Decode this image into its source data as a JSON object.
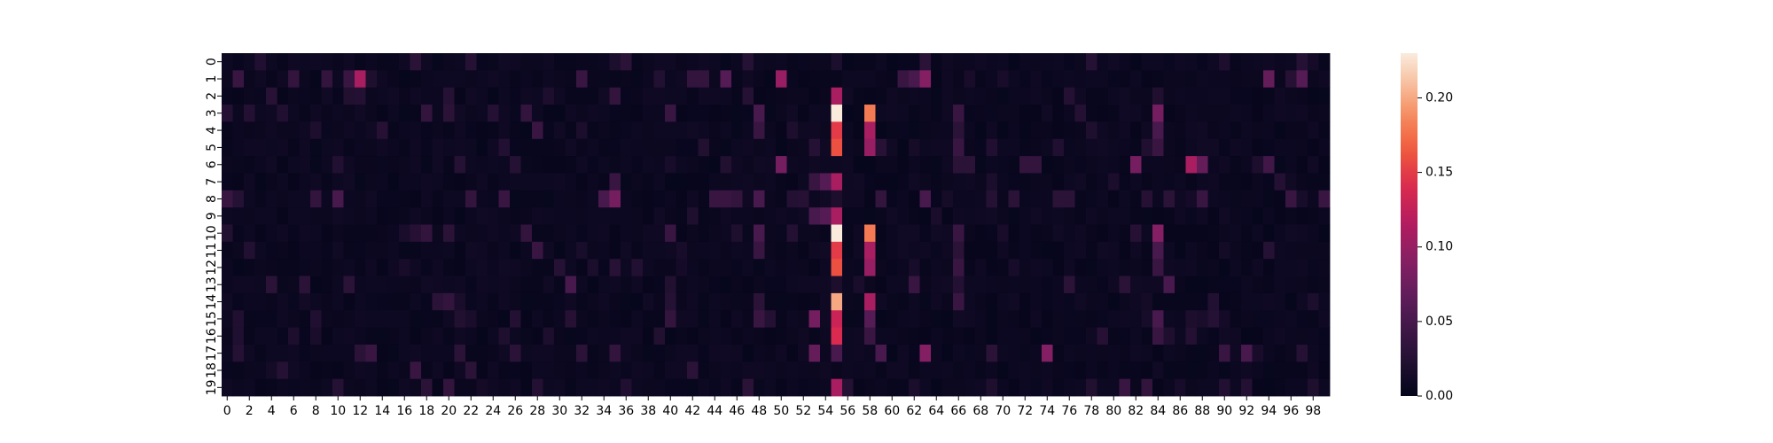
{
  "chart_data": {
    "type": "heatmap",
    "title": "",
    "xlabel": "",
    "ylabel": "",
    "rows": 20,
    "cols": 100,
    "x_tick_labels": [
      "0",
      "2",
      "4",
      "6",
      "8",
      "10",
      "12",
      "14",
      "16",
      "18",
      "20",
      "22",
      "24",
      "26",
      "28",
      "30",
      "32",
      "34",
      "36",
      "38",
      "40",
      "42",
      "44",
      "46",
      "48",
      "50",
      "52",
      "54",
      "56",
      "58",
      "60",
      "62",
      "64",
      "66",
      "68",
      "70",
      "72",
      "74",
      "76",
      "78",
      "80",
      "82",
      "84",
      "86",
      "88",
      "90",
      "92",
      "94",
      "96",
      "98"
    ],
    "y_tick_labels": [
      "0",
      "1",
      "2",
      "3",
      "4",
      "5",
      "6",
      "7",
      "8",
      "9",
      "10",
      "11",
      "12",
      "13",
      "14",
      "15",
      "16",
      "17",
      "18",
      "19"
    ],
    "colorbar": {
      "min": 0.0,
      "max": 0.23,
      "tick_labels": [
        "0.00",
        "0.05",
        "0.10",
        "0.15",
        "0.20"
      ],
      "tick_values": [
        0.0,
        0.05,
        0.1,
        0.15,
        0.2
      ],
      "colormap": "rocket"
    },
    "background_level": 0.008,
    "hot_cells": [
      {
        "row": 1,
        "col": 12,
        "v": 0.11
      },
      {
        "row": 1,
        "col": 50,
        "v": 0.1
      },
      {
        "row": 1,
        "col": 63,
        "v": 0.09
      },
      {
        "row": 1,
        "col": 1,
        "v": 0.04
      },
      {
        "row": 1,
        "col": 6,
        "v": 0.035
      },
      {
        "row": 1,
        "col": 9,
        "v": 0.035
      },
      {
        "row": 1,
        "col": 11,
        "v": 0.04
      },
      {
        "row": 1,
        "col": 45,
        "v": 0.06
      },
      {
        "row": 1,
        "col": 94,
        "v": 0.07
      },
      {
        "row": 1,
        "col": 97,
        "v": 0.06
      },
      {
        "row": 1,
        "col": 32,
        "v": 0.04
      },
      {
        "row": 1,
        "col": 61,
        "v": 0.04
      },
      {
        "row": 1,
        "col": 62,
        "v": 0.05
      },
      {
        "row": 1,
        "col": 42,
        "v": 0.035
      },
      {
        "row": 1,
        "col": 43,
        "v": 0.035
      },
      {
        "row": 2,
        "col": 55,
        "v": 0.11
      },
      {
        "row": 3,
        "col": 55,
        "v": 0.23
      },
      {
        "row": 4,
        "col": 55,
        "v": 0.15
      },
      {
        "row": 5,
        "col": 55,
        "v": 0.16
      },
      {
        "row": 7,
        "col": 55,
        "v": 0.11
      },
      {
        "row": 9,
        "col": 55,
        "v": 0.11
      },
      {
        "row": 10,
        "col": 55,
        "v": 0.23
      },
      {
        "row": 11,
        "col": 55,
        "v": 0.15
      },
      {
        "row": 12,
        "col": 55,
        "v": 0.16
      },
      {
        "row": 14,
        "col": 55,
        "v": 0.2
      },
      {
        "row": 15,
        "col": 55,
        "v": 0.13
      },
      {
        "row": 16,
        "col": 55,
        "v": 0.14
      },
      {
        "row": 17,
        "col": 55,
        "v": 0.05
      },
      {
        "row": 19,
        "col": 55,
        "v": 0.11
      },
      {
        "row": 8,
        "col": 55,
        "v": 0.02
      },
      {
        "row": 13,
        "col": 55,
        "v": 0.02
      },
      {
        "row": 3,
        "col": 58,
        "v": 0.18
      },
      {
        "row": 4,
        "col": 58,
        "v": 0.11
      },
      {
        "row": 5,
        "col": 58,
        "v": 0.1
      },
      {
        "row": 10,
        "col": 58,
        "v": 0.18
      },
      {
        "row": 11,
        "col": 58,
        "v": 0.11
      },
      {
        "row": 12,
        "col": 58,
        "v": 0.1
      },
      {
        "row": 14,
        "col": 58,
        "v": 0.11
      },
      {
        "row": 15,
        "col": 58,
        "v": 0.06
      },
      {
        "row": 16,
        "col": 58,
        "v": 0.04
      },
      {
        "row": 3,
        "col": 84,
        "v": 0.08
      },
      {
        "row": 4,
        "col": 84,
        "v": 0.05
      },
      {
        "row": 5,
        "col": 84,
        "v": 0.04
      },
      {
        "row": 10,
        "col": 84,
        "v": 0.09
      },
      {
        "row": 11,
        "col": 84,
        "v": 0.05
      },
      {
        "row": 12,
        "col": 84,
        "v": 0.04
      },
      {
        "row": 15,
        "col": 84,
        "v": 0.05
      },
      {
        "row": 16,
        "col": 84,
        "v": 0.04
      },
      {
        "row": 6,
        "col": 50,
        "v": 0.08
      },
      {
        "row": 6,
        "col": 82,
        "v": 0.08
      },
      {
        "row": 6,
        "col": 87,
        "v": 0.11
      },
      {
        "row": 6,
        "col": 88,
        "v": 0.07
      },
      {
        "row": 6,
        "col": 66,
        "v": 0.03
      },
      {
        "row": 6,
        "col": 67,
        "v": 0.03
      },
      {
        "row": 6,
        "col": 72,
        "v": 0.035
      },
      {
        "row": 6,
        "col": 73,
        "v": 0.035
      },
      {
        "row": 6,
        "col": 94,
        "v": 0.045
      },
      {
        "row": 6,
        "col": 21,
        "v": 0.025
      },
      {
        "row": 7,
        "col": 53,
        "v": 0.04
      },
      {
        "row": 7,
        "col": 54,
        "v": 0.06
      },
      {
        "row": 9,
        "col": 53,
        "v": 0.05
      },
      {
        "row": 9,
        "col": 54,
        "v": 0.06
      },
      {
        "row": 7,
        "col": 35,
        "v": 0.04
      },
      {
        "row": 8,
        "col": 35,
        "v": 0.08
      },
      {
        "row": 8,
        "col": 34,
        "v": 0.05
      },
      {
        "row": 8,
        "col": 0,
        "v": 0.04
      },
      {
        "row": 8,
        "col": 10,
        "v": 0.05
      },
      {
        "row": 8,
        "col": 8,
        "v": 0.035
      },
      {
        "row": 8,
        "col": 22,
        "v": 0.035
      },
      {
        "row": 8,
        "col": 25,
        "v": 0.04
      },
      {
        "row": 8,
        "col": 44,
        "v": 0.04
      },
      {
        "row": 8,
        "col": 45,
        "v": 0.04
      },
      {
        "row": 8,
        "col": 46,
        "v": 0.035
      },
      {
        "row": 8,
        "col": 48,
        "v": 0.05
      },
      {
        "row": 8,
        "col": 59,
        "v": 0.035
      },
      {
        "row": 8,
        "col": 63,
        "v": 0.05
      },
      {
        "row": 8,
        "col": 71,
        "v": 0.03
      },
      {
        "row": 8,
        "col": 75,
        "v": 0.03
      },
      {
        "row": 8,
        "col": 76,
        "v": 0.03
      },
      {
        "row": 8,
        "col": 85,
        "v": 0.03
      },
      {
        "row": 8,
        "col": 88,
        "v": 0.04
      },
      {
        "row": 8,
        "col": 96,
        "v": 0.04
      },
      {
        "row": 8,
        "col": 99,
        "v": 0.04
      },
      {
        "row": 3,
        "col": 48,
        "v": 0.05
      },
      {
        "row": 4,
        "col": 48,
        "v": 0.04
      },
      {
        "row": 10,
        "col": 48,
        "v": 0.05
      },
      {
        "row": 11,
        "col": 48,
        "v": 0.04
      },
      {
        "row": 3,
        "col": 40,
        "v": 0.04
      },
      {
        "row": 10,
        "col": 40,
        "v": 0.04
      },
      {
        "row": 3,
        "col": 66,
        "v": 0.04
      },
      {
        "row": 10,
        "col": 66,
        "v": 0.04
      },
      {
        "row": 3,
        "col": 27,
        "v": 0.035
      },
      {
        "row": 4,
        "col": 28,
        "v": 0.04
      },
      {
        "row": 10,
        "col": 27,
        "v": 0.035
      },
      {
        "row": 11,
        "col": 28,
        "v": 0.04
      },
      {
        "row": 4,
        "col": 66,
        "v": 0.03
      },
      {
        "row": 5,
        "col": 66,
        "v": 0.04
      },
      {
        "row": 11,
        "col": 66,
        "v": 0.03
      },
      {
        "row": 12,
        "col": 66,
        "v": 0.04
      },
      {
        "row": 3,
        "col": 18,
        "v": 0.035
      },
      {
        "row": 10,
        "col": 18,
        "v": 0.035
      },
      {
        "row": 3,
        "col": 20,
        "v": 0.03
      },
      {
        "row": 10,
        "col": 20,
        "v": 0.03
      },
      {
        "row": 13,
        "col": 31,
        "v": 0.05
      },
      {
        "row": 13,
        "col": 62,
        "v": 0.04
      },
      {
        "row": 13,
        "col": 85,
        "v": 0.05
      },
      {
        "row": 13,
        "col": 4,
        "v": 0.03
      },
      {
        "row": 13,
        "col": 7,
        "v": 0.03
      },
      {
        "row": 13,
        "col": 11,
        "v": 0.03
      },
      {
        "row": 13,
        "col": 76,
        "v": 0.03
      },
      {
        "row": 13,
        "col": 81,
        "v": 0.03
      },
      {
        "row": 14,
        "col": 66,
        "v": 0.04
      },
      {
        "row": 14,
        "col": 48,
        "v": 0.03
      },
      {
        "row": 14,
        "col": 19,
        "v": 0.03
      },
      {
        "row": 14,
        "col": 20,
        "v": 0.035
      },
      {
        "row": 15,
        "col": 53,
        "v": 0.08
      },
      {
        "row": 15,
        "col": 48,
        "v": 0.04
      },
      {
        "row": 15,
        "col": 40,
        "v": 0.035
      },
      {
        "row": 17,
        "col": 53,
        "v": 0.07
      },
      {
        "row": 17,
        "col": 63,
        "v": 0.09
      },
      {
        "row": 17,
        "col": 74,
        "v": 0.09
      },
      {
        "row": 17,
        "col": 59,
        "v": 0.05
      },
      {
        "row": 17,
        "col": 92,
        "v": 0.05
      },
      {
        "row": 17,
        "col": 13,
        "v": 0.04
      },
      {
        "row": 17,
        "col": 12,
        "v": 0.03
      },
      {
        "row": 17,
        "col": 35,
        "v": 0.035
      },
      {
        "row": 17,
        "col": 32,
        "v": 0.03
      },
      {
        "row": 17,
        "col": 69,
        "v": 0.03
      },
      {
        "row": 17,
        "col": 90,
        "v": 0.04
      },
      {
        "row": 17,
        "col": 21,
        "v": 0.03
      },
      {
        "row": 17,
        "col": 26,
        "v": 0.03
      },
      {
        "row": 18,
        "col": 17,
        "v": 0.04
      },
      {
        "row": 18,
        "col": 22,
        "v": 0.03
      },
      {
        "row": 18,
        "col": 42,
        "v": 0.03
      },
      {
        "row": 18,
        "col": 5,
        "v": 0.025
      },
      {
        "row": 19,
        "col": 20,
        "v": 0.035
      },
      {
        "row": 19,
        "col": 81,
        "v": 0.04
      },
      {
        "row": 19,
        "col": 83,
        "v": 0.035
      },
      {
        "row": 19,
        "col": 47,
        "v": 0.03
      },
      {
        "row": 19,
        "col": 18,
        "v": 0.03
      },
      {
        "row": 19,
        "col": 56,
        "v": 0.025
      },
      {
        "row": 0,
        "col": 17,
        "v": 0.03
      },
      {
        "row": 0,
        "col": 22,
        "v": 0.025
      },
      {
        "row": 0,
        "col": 36,
        "v": 0.03
      },
      {
        "row": 0,
        "col": 47,
        "v": 0.025
      },
      {
        "row": 0,
        "col": 63,
        "v": 0.03
      },
      {
        "row": 0,
        "col": 78,
        "v": 0.025
      },
      {
        "row": 0,
        "col": 97,
        "v": 0.025
      },
      {
        "row": 2,
        "col": 35,
        "v": 0.035
      },
      {
        "row": 2,
        "col": 20,
        "v": 0.025
      },
      {
        "row": 2,
        "col": 47,
        "v": 0.025
      }
    ]
  }
}
